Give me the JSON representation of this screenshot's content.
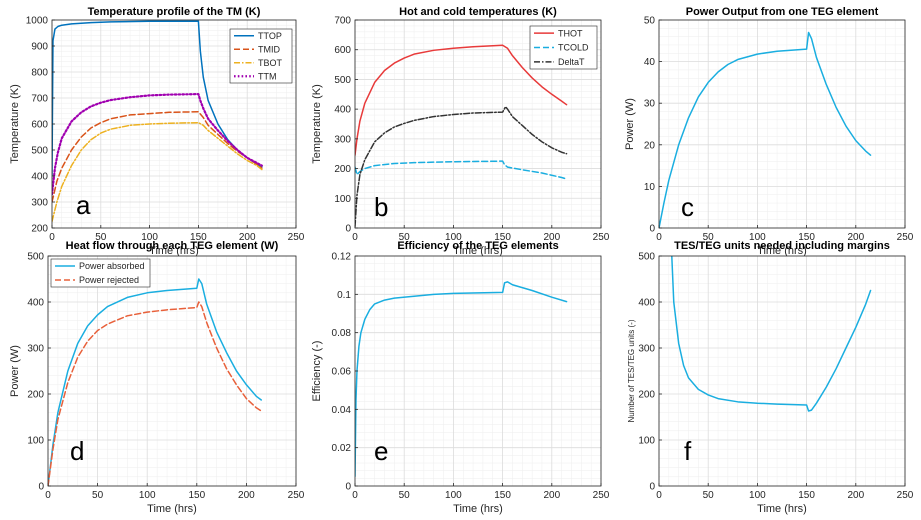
{
  "chart_data": [
    {
      "id": "a",
      "type": "line",
      "title": "Temperature profile of the TM (K)",
      "xlabel": "Time (hrs)",
      "ylabel": "Temperature (K)",
      "xlim": [
        0,
        250
      ],
      "ylim": [
        200,
        1000
      ],
      "xticks": [
        0,
        50,
        100,
        150,
        200,
        250
      ],
      "yticks": [
        200,
        300,
        400,
        500,
        600,
        700,
        800,
        900,
        1000
      ],
      "legend_placement": "top-right",
      "panel_letter": "a",
      "series": [
        {
          "name": "TTOP",
          "color": "#0072BD",
          "dash": "solid",
          "x": [
            0,
            1,
            3,
            6,
            10,
            20,
            40,
            60,
            100,
            150,
            152,
            155,
            160,
            170,
            180,
            190,
            200,
            210,
            215
          ],
          "y": [
            400,
            920,
            965,
            975,
            980,
            985,
            990,
            993,
            995,
            995,
            880,
            780,
            690,
            600,
            540,
            500,
            470,
            445,
            435
          ]
        },
        {
          "name": "TMID",
          "color": "#D95319",
          "dash": "dash",
          "x": [
            0,
            5,
            10,
            20,
            30,
            40,
            50,
            60,
            80,
            100,
            120,
            150,
            155,
            160,
            170,
            180,
            190,
            200,
            210,
            215
          ],
          "y": [
            300,
            380,
            430,
            500,
            550,
            585,
            605,
            620,
            635,
            640,
            645,
            647,
            625,
            595,
            560,
            525,
            495,
            470,
            445,
            430
          ]
        },
        {
          "name": "TBOT",
          "color": "#EDB120",
          "dash": "dashdot",
          "x": [
            0,
            5,
            10,
            20,
            30,
            40,
            50,
            60,
            80,
            100,
            120,
            150,
            155,
            160,
            170,
            180,
            190,
            200,
            210,
            215
          ],
          "y": [
            225,
            300,
            360,
            440,
            500,
            540,
            565,
            580,
            595,
            600,
            603,
            605,
            595,
            575,
            545,
            515,
            485,
            460,
            440,
            425
          ]
        },
        {
          "name": "TTM",
          "color": "#A000B0",
          "dash": "dot",
          "x": [
            0,
            3,
            6,
            10,
            20,
            30,
            40,
            50,
            60,
            80,
            100,
            120,
            150,
            152,
            155,
            160,
            170,
            180,
            190,
            200,
            210,
            215
          ],
          "y": [
            330,
            430,
            490,
            545,
            610,
            645,
            668,
            682,
            692,
            703,
            710,
            713,
            715,
            690,
            660,
            620,
            575,
            535,
            500,
            470,
            450,
            440
          ]
        }
      ]
    },
    {
      "id": "b",
      "type": "line",
      "title": "Hot and cold temperatures (K)",
      "xlabel": "Time (hrs)",
      "ylabel": "Temperature (K)",
      "xlim": [
        0,
        250
      ],
      "ylim": [
        0,
        700
      ],
      "xticks": [
        0,
        50,
        100,
        150,
        200,
        250
      ],
      "yticks": [
        0,
        100,
        200,
        300,
        400,
        500,
        600,
        700
      ],
      "legend_placement": "top-right",
      "panel_letter": "b",
      "series": [
        {
          "name": "THOT",
          "color": "#E83A3A",
          "dash": "solid",
          "x": [
            0,
            2,
            5,
            10,
            20,
            30,
            40,
            50,
            60,
            80,
            100,
            120,
            150,
            155,
            160,
            170,
            180,
            190,
            200,
            210,
            215
          ],
          "y": [
            245,
            300,
            360,
            420,
            490,
            530,
            555,
            572,
            585,
            598,
            605,
            610,
            615,
            605,
            580,
            540,
            505,
            475,
            450,
            427,
            415
          ]
        },
        {
          "name": "TCOLD",
          "color": "#1AAEE0",
          "dash": "dash",
          "x": [
            0,
            2,
            5,
            10,
            20,
            40,
            60,
            100,
            150,
            152,
            155,
            170,
            190,
            210,
            215
          ],
          "y": [
            205,
            180,
            190,
            200,
            210,
            217,
            220,
            223,
            225,
            213,
            205,
            196,
            185,
            170,
            165
          ]
        },
        {
          "name": "DeltaT",
          "color": "#333333",
          "dash": "dashdot",
          "x": [
            0,
            2,
            5,
            10,
            20,
            30,
            40,
            50,
            60,
            80,
            100,
            120,
            150,
            153,
            155,
            160,
            170,
            180,
            190,
            200,
            210,
            215
          ],
          "y": [
            5,
            110,
            180,
            230,
            290,
            320,
            340,
            352,
            362,
            375,
            382,
            387,
            390,
            408,
            400,
            375,
            345,
            315,
            290,
            270,
            255,
            250
          ]
        }
      ]
    },
    {
      "id": "c",
      "type": "line",
      "title": "Power Output from one TEG element",
      "xlabel": "Time (hrs)",
      "ylabel": "Power (W)",
      "xlim": [
        0,
        250
      ],
      "ylim": [
        0,
        50
      ],
      "xticks": [
        0,
        50,
        100,
        150,
        200,
        250
      ],
      "yticks": [
        0,
        10,
        20,
        30,
        40,
        50
      ],
      "panel_letter": "c",
      "series": [
        {
          "name": "",
          "color": "#1AAEE0",
          "dash": "solid",
          "x": [
            0,
            5,
            10,
            20,
            30,
            40,
            50,
            60,
            70,
            80,
            100,
            120,
            150,
            152,
            155,
            160,
            170,
            180,
            190,
            200,
            210,
            215
          ],
          "y": [
            0,
            6,
            11.5,
            20,
            26.5,
            31.5,
            35,
            37.5,
            39.3,
            40.5,
            41.8,
            42.5,
            43,
            47,
            45.5,
            41,
            34.5,
            29,
            24.5,
            21,
            18.5,
            17.5
          ]
        }
      ]
    },
    {
      "id": "d",
      "type": "line",
      "title": "Heat flow through each TEG element (W)",
      "xlabel": "Time (hrs)",
      "ylabel": "Power (W)",
      "xlim": [
        0,
        250
      ],
      "ylim": [
        0,
        500
      ],
      "xticks": [
        0,
        50,
        100,
        150,
        200,
        250
      ],
      "yticks": [
        0,
        100,
        200,
        300,
        400,
        500
      ],
      "legend_placement": "top-left",
      "panel_letter": "d",
      "series": [
        {
          "name": "Power absorbed",
          "color": "#1AAEE0",
          "dash": "solid",
          "x": [
            0,
            5,
            10,
            20,
            30,
            40,
            50,
            60,
            80,
            100,
            120,
            150,
            152,
            155,
            160,
            170,
            180,
            190,
            200,
            210,
            215
          ],
          "y": [
            0,
            90,
            160,
            250,
            310,
            348,
            372,
            390,
            410,
            420,
            425,
            430,
            450,
            440,
            395,
            335,
            290,
            250,
            220,
            195,
            187
          ]
        },
        {
          "name": "Power rejected",
          "color": "#E8603A",
          "dash": "dash",
          "x": [
            0,
            5,
            10,
            20,
            30,
            40,
            50,
            60,
            80,
            100,
            120,
            150,
            152,
            155,
            160,
            170,
            180,
            190,
            200,
            210,
            215
          ],
          "y": [
            0,
            80,
            145,
            225,
            280,
            315,
            338,
            352,
            370,
            378,
            383,
            388,
            400,
            390,
            355,
            300,
            255,
            220,
            190,
            170,
            163
          ]
        }
      ]
    },
    {
      "id": "e",
      "type": "line",
      "title": "Efficiency of the TEG elements",
      "xlabel": "Time (hrs)",
      "ylabel": "Efficiency (-)",
      "xlim": [
        0,
        250
      ],
      "ylim": [
        0,
        0.12
      ],
      "xticks": [
        0,
        50,
        100,
        150,
        200,
        250
      ],
      "yticks": [
        0,
        0.02,
        0.04,
        0.06,
        0.08,
        0.1,
        0.12
      ],
      "panel_letter": "e",
      "series": [
        {
          "name": "",
          "color": "#1AAEE0",
          "dash": "solid",
          "x": [
            0,
            1,
            2,
            4,
            6,
            10,
            15,
            20,
            30,
            40,
            60,
            80,
            100,
            150,
            152,
            155,
            160,
            180,
            200,
            215
          ],
          "y": [
            0.005,
            0.045,
            0.06,
            0.073,
            0.08,
            0.087,
            0.092,
            0.095,
            0.097,
            0.098,
            0.099,
            0.1,
            0.1005,
            0.101,
            0.106,
            0.1065,
            0.105,
            0.102,
            0.0985,
            0.0962
          ]
        }
      ]
    },
    {
      "id": "f",
      "type": "line",
      "title": "TES/TEG units needed including margins",
      "xlabel": "Time (hrs)",
      "ylabel": "Number of TES/TEG units (-)",
      "xlim": [
        0,
        250
      ],
      "ylim": [
        0,
        500
      ],
      "xticks": [
        0,
        50,
        100,
        150,
        200,
        250
      ],
      "yticks": [
        0,
        100,
        200,
        300,
        400,
        500
      ],
      "panel_letter": "f",
      "series": [
        {
          "name": "",
          "color": "#1AAEE0",
          "dash": "solid",
          "x": [
            13,
            15,
            20,
            25,
            30,
            40,
            50,
            60,
            80,
            100,
            120,
            150,
            152,
            155,
            160,
            170,
            180,
            190,
            200,
            210,
            215
          ],
          "y": [
            500,
            400,
            310,
            262,
            235,
            210,
            198,
            190,
            183,
            180,
            178,
            176,
            163,
            165,
            180,
            215,
            255,
            300,
            345,
            395,
            425
          ]
        }
      ]
    }
  ]
}
